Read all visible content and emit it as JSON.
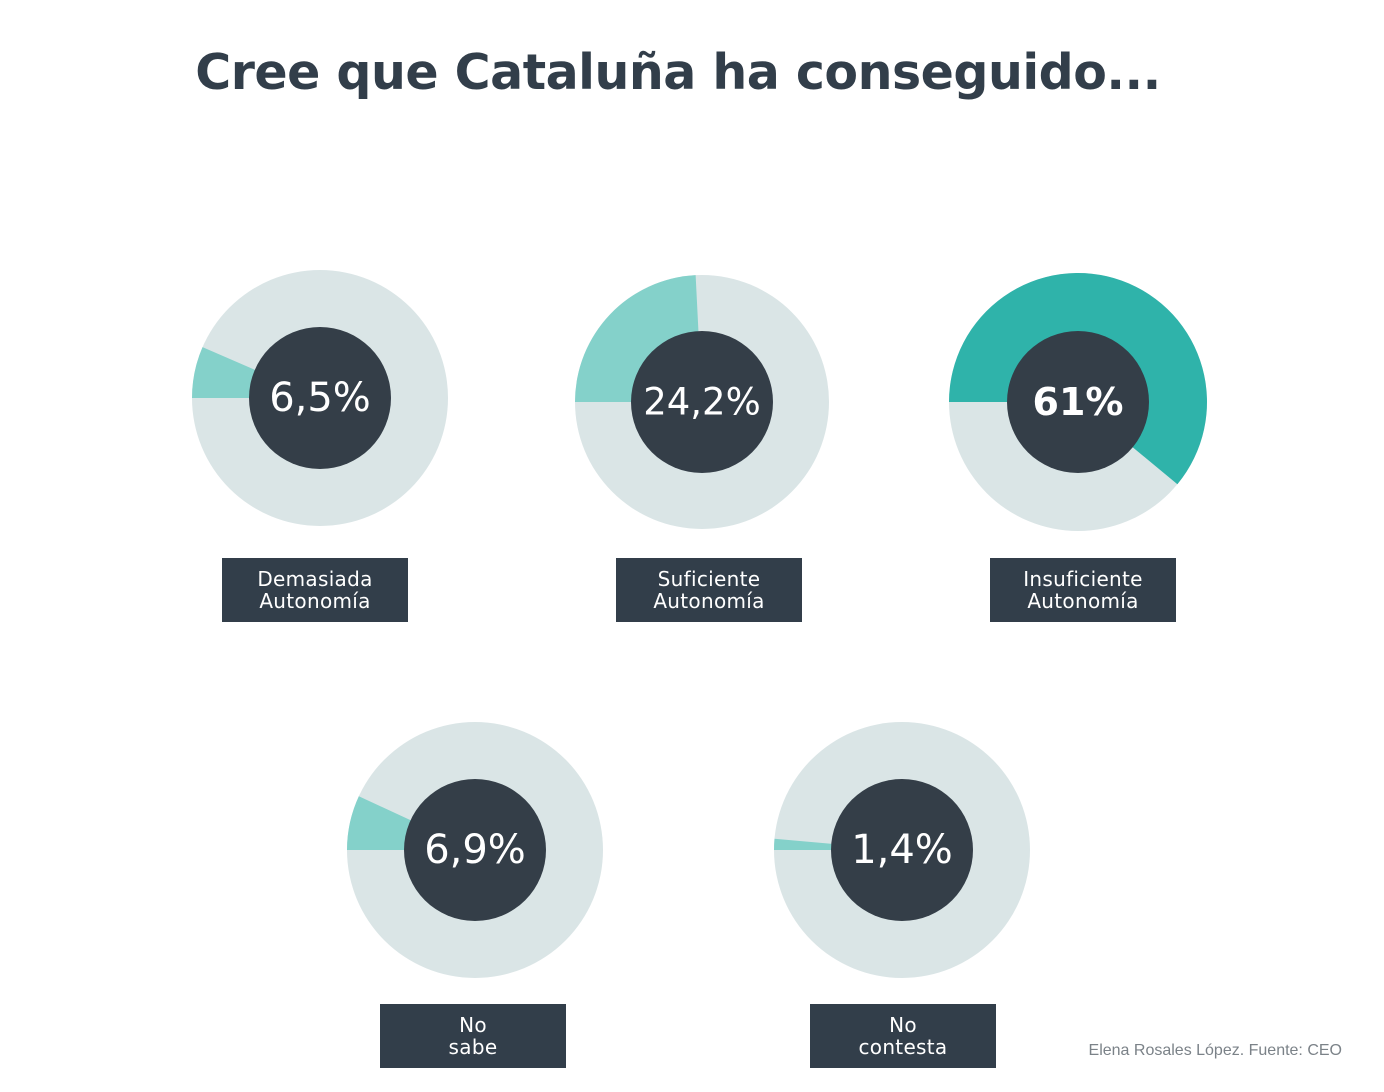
{
  "title": "Cree que Cataluña ha conseguido...",
  "credit": "Elena Rosales López. Fuente: CEO",
  "colors": {
    "track": "#dae5e6",
    "highlight_light": "#84d1ca",
    "highlight_strong": "#2fb3aa",
    "center": "#343e48",
    "label_bg": "#323e4a",
    "text_dark": "#323e4a"
  },
  "chart_data": {
    "type": "pie",
    "title": "Cree que Cataluña ha conseguido...",
    "unit": "%",
    "series": [
      {
        "name": "Demasiada Autonomía",
        "value": 6.5,
        "display": "6,5%",
        "label_lines": [
          "Demasiada",
          "Autonomía"
        ],
        "color": "#84d1ca"
      },
      {
        "name": "Suficiente Autonomía",
        "value": 24.2,
        "display": "24,2%",
        "label_lines": [
          "Suficiente",
          "Autonomía"
        ],
        "color": "#84d1ca"
      },
      {
        "name": "Insuficiente Autonomía",
        "value": 61,
        "display": "61%",
        "label_lines": [
          "Insuficiente",
          "Autonomía"
        ],
        "color": "#2fb3aa",
        "emphasis": true
      },
      {
        "name": "No sabe",
        "value": 6.9,
        "display": "6,9%",
        "label_lines": [
          "No",
          "sabe"
        ],
        "color": "#84d1ca"
      },
      {
        "name": "No contesta",
        "value": 1.4,
        "display": "1,4%",
        "label_lines": [
          "No",
          "contesta"
        ],
        "color": "#84d1ca"
      }
    ]
  }
}
